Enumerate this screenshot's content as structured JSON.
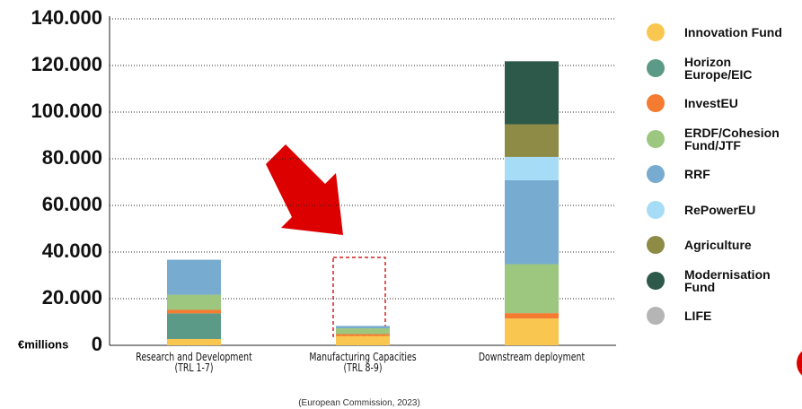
{
  "chart_data": {
    "type": "bar",
    "stacked": true,
    "ylabel": "€millions",
    "source": "(European Commission, 2023)",
    "categories": [
      "Research and Development\n(TRL 1-7)",
      "Manufacturing Capacities\n(TRL 8-9)",
      "Downstream deployment"
    ],
    "series": [
      {
        "name": "Innovation Fund",
        "color": "#f9c74f",
        "values": [
          2700,
          4000,
          11500
        ]
      },
      {
        "name": "Horizon Europe/EIC",
        "color": "#5a9a86",
        "values": [
          11000,
          0,
          0
        ]
      },
      {
        "name": "InvestEU",
        "color": "#f47b30",
        "values": [
          1500,
          800,
          2300
        ]
      },
      {
        "name": "ERDF/Cohesion Fund/JTF",
        "color": "#9dc77f",
        "values": [
          6500,
          2500,
          21000
        ]
      },
      {
        "name": "RRF",
        "color": "#77abd0",
        "values": [
          15000,
          1000,
          36000
        ]
      },
      {
        "name": "RePowerEU",
        "color": "#a7dcf7",
        "values": [
          0,
          0,
          10000
        ]
      },
      {
        "name": "Agriculture",
        "color": "#8d8b45",
        "values": [
          0,
          0,
          14000
        ]
      },
      {
        "name": "Modernisation Fund",
        "color": "#2c594a",
        "values": [
          0,
          0,
          27000
        ]
      },
      {
        "name": "LIFE",
        "color": "#b5b5b5",
        "values": [
          0,
          0,
          0
        ]
      }
    ],
    "ylim": [
      0,
      140000
    ],
    "yticks": [
      0,
      {
        "value": 20000,
        "label": "20.000"
      },
      {
        "value": 40000,
        "label": "40.000"
      },
      {
        "value": 60000,
        "label": "60.000"
      },
      {
        "value": 80000,
        "label": "80.000"
      },
      {
        "value": 100000,
        "label": "100.000"
      },
      {
        "value": 120000,
        "label": "120.000"
      },
      {
        "value": 140000,
        "label": "140.000"
      }
    ],
    "grid": true
  }
}
